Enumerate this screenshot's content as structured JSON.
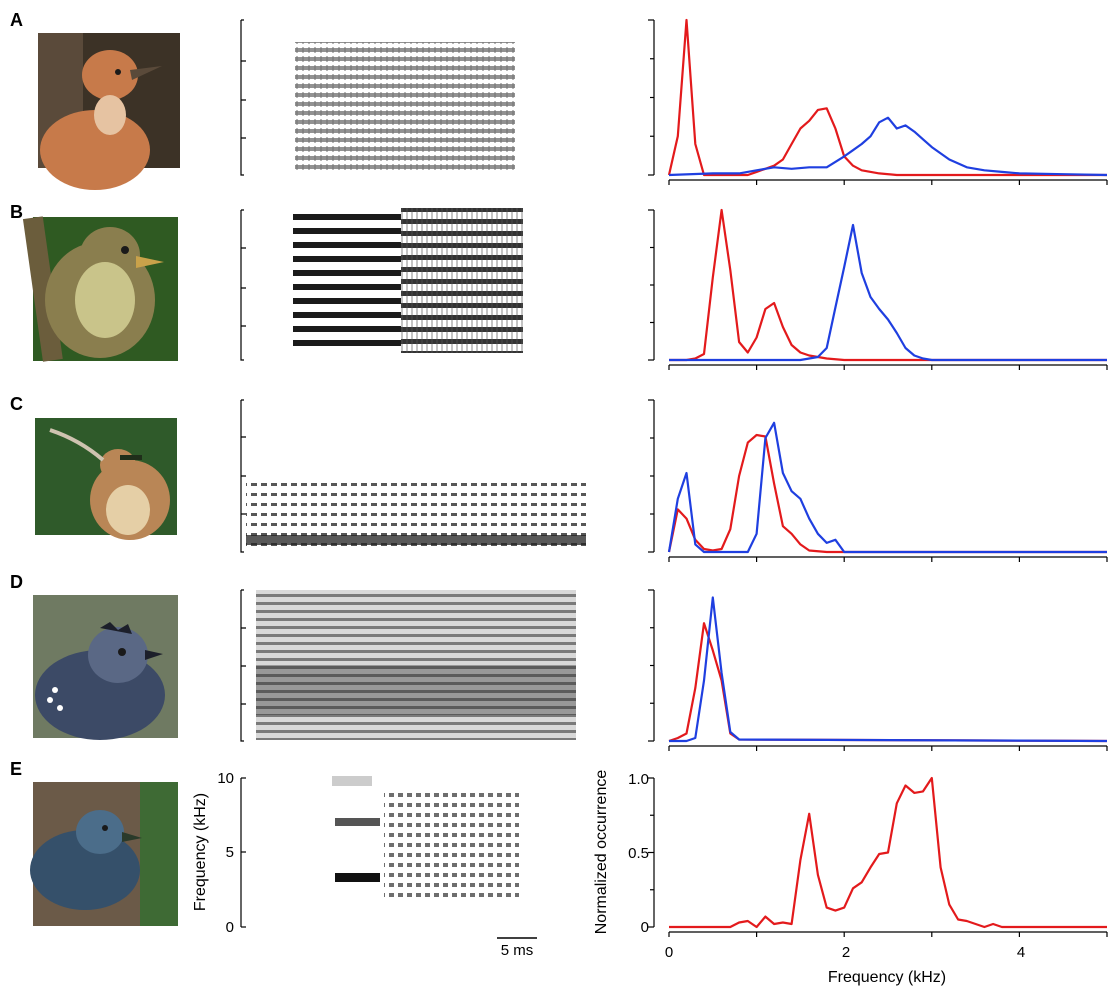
{
  "panels": [
    {
      "label": "A",
      "bird": "bird-photo-rufous-hornero",
      "photo_colors": [
        "#3c3226",
        "#c77a4a",
        "#e6c3a2",
        "#5a4a3a"
      ]
    },
    {
      "label": "B",
      "bird": "bird-photo-streaked-bird",
      "photo_colors": [
        "#2f5a22",
        "#8a7e4e",
        "#c9c48a",
        "#6b5d3c"
      ]
    },
    {
      "label": "C",
      "bird": "bird-photo-scythebill",
      "photo_colors": [
        "#2f5a2a",
        "#b98656",
        "#e5cfa6",
        "#1f2e1a"
      ]
    },
    {
      "label": "D",
      "bird": "bird-photo-crested-antshrike",
      "photo_colors": [
        "#6f7a62",
        "#3c4a66",
        "#5a6885",
        "#1c1f2a"
      ]
    },
    {
      "label": "E",
      "bird": "bird-photo-antbird",
      "photo_colors": [
        "#6b5a48",
        "#35506a",
        "#4b6d8a",
        "#2a3a2a"
      ]
    }
  ],
  "spectrogram_axis": {
    "ylabel": "Frequency (kHz)",
    "ticks": [
      "10",
      "5",
      "0"
    ]
  },
  "scale_bar": {
    "label": "5 ms"
  },
  "x_axis": {
    "label": "Frequency (kHz)",
    "ticks": [
      "0",
      "2",
      "4"
    ]
  },
  "y_axis": {
    "label": "Normalized occurrence",
    "ticks": [
      "1.0",
      "0.5",
      "0"
    ]
  },
  "colors": {
    "red": "#e31a1c",
    "blue": "#1f3fe0"
  },
  "chart_data": [
    {
      "panel": "A",
      "type": "line",
      "xlim": [
        0,
        5
      ],
      "ylim": [
        0,
        1
      ],
      "series": [
        {
          "color": "red",
          "x": [
            0,
            0.1,
            0.2,
            0.3,
            0.4,
            0.5,
            0.6,
            0.7,
            0.8,
            0.9,
            1.0,
            1.1,
            1.2,
            1.3,
            1.4,
            1.5,
            1.6,
            1.7,
            1.8,
            1.9,
            2.0,
            2.1,
            2.2,
            2.4,
            2.6,
            2.8,
            3.0,
            3.2,
            3.4,
            3.6,
            3.8,
            4.0,
            4.5,
            5.0
          ],
          "values": [
            0,
            0.25,
            1.0,
            0.2,
            0,
            0,
            0,
            0,
            0,
            0,
            0.02,
            0.04,
            0.06,
            0.1,
            0.2,
            0.3,
            0.35,
            0.42,
            0.43,
            0.3,
            0.12,
            0.06,
            0.03,
            0.01,
            0,
            0,
            0,
            0,
            0,
            0,
            0,
            0,
            0,
            0
          ]
        },
        {
          "color": "blue",
          "x": [
            0,
            0.5,
            0.8,
            1.0,
            1.2,
            1.4,
            1.6,
            1.8,
            2.0,
            2.1,
            2.2,
            2.3,
            2.4,
            2.5,
            2.6,
            2.7,
            2.8,
            2.9,
            3.0,
            3.2,
            3.4,
            3.6,
            3.8,
            4.0,
            4.5,
            5.0
          ],
          "values": [
            0,
            0.01,
            0.01,
            0.03,
            0.05,
            0.04,
            0.05,
            0.05,
            0.12,
            0.16,
            0.2,
            0.25,
            0.34,
            0.37,
            0.3,
            0.32,
            0.28,
            0.23,
            0.18,
            0.1,
            0.05,
            0.03,
            0.02,
            0.01,
            0.005,
            0
          ]
        }
      ]
    },
    {
      "panel": "B",
      "type": "line",
      "xlim": [
        0,
        5
      ],
      "ylim": [
        0,
        1
      ],
      "series": [
        {
          "color": "red",
          "x": [
            0,
            0.2,
            0.3,
            0.4,
            0.5,
            0.6,
            0.7,
            0.8,
            0.9,
            1.0,
            1.1,
            1.2,
            1.3,
            1.4,
            1.5,
            1.6,
            1.8,
            2.0,
            5.0
          ],
          "values": [
            0,
            0,
            0.01,
            0.04,
            0.55,
            1.0,
            0.6,
            0.12,
            0.05,
            0.15,
            0.34,
            0.38,
            0.22,
            0.1,
            0.05,
            0.03,
            0.01,
            0,
            0
          ]
        },
        {
          "color": "blue",
          "x": [
            0,
            1.5,
            1.6,
            1.7,
            1.8,
            1.9,
            2.0,
            2.1,
            2.2,
            2.3,
            2.4,
            2.5,
            2.6,
            2.7,
            2.8,
            2.9,
            3.0,
            5.0
          ],
          "values": [
            0,
            0,
            0.01,
            0.02,
            0.08,
            0.35,
            0.62,
            0.9,
            0.58,
            0.42,
            0.34,
            0.27,
            0.18,
            0.08,
            0.03,
            0.01,
            0,
            0
          ]
        }
      ]
    },
    {
      "panel": "C",
      "type": "line",
      "xlim": [
        0,
        5
      ],
      "ylim": [
        0,
        1
      ],
      "series": [
        {
          "color": "red",
          "x": [
            0,
            0.1,
            0.2,
            0.3,
            0.4,
            0.5,
            0.6,
            0.7,
            0.8,
            0.9,
            1.0,
            1.1,
            1.2,
            1.3,
            1.4,
            1.5,
            1.6,
            1.8,
            2.0,
            5.0
          ],
          "values": [
            0,
            0.28,
            0.22,
            0.08,
            0.02,
            0.01,
            0.02,
            0.15,
            0.5,
            0.72,
            0.77,
            0.76,
            0.45,
            0.17,
            0.12,
            0.05,
            0.01,
            0,
            0,
            0
          ]
        },
        {
          "color": "blue",
          "x": [
            0,
            0.1,
            0.2,
            0.3,
            0.4,
            0.5,
            0.6,
            0.7,
            0.8,
            0.9,
            1.0,
            1.1,
            1.2,
            1.3,
            1.4,
            1.5,
            1.6,
            1.7,
            1.8,
            1.9,
            2.0,
            5.0
          ],
          "values": [
            0,
            0.35,
            0.52,
            0.05,
            0,
            0,
            0,
            0,
            0,
            0,
            0.12,
            0.75,
            0.85,
            0.52,
            0.4,
            0.35,
            0.22,
            0.12,
            0.06,
            0.08,
            0,
            0
          ]
        }
      ]
    },
    {
      "panel": "D",
      "type": "line",
      "xlim": [
        0,
        5
      ],
      "ylim": [
        0,
        1
      ],
      "series": [
        {
          "color": "red",
          "x": [
            0,
            0.1,
            0.2,
            0.3,
            0.4,
            0.5,
            0.6,
            0.7,
            0.8,
            5.0
          ],
          "values": [
            0,
            0.02,
            0.05,
            0.35,
            0.78,
            0.6,
            0.4,
            0.05,
            0.01,
            0
          ]
        },
        {
          "color": "blue",
          "x": [
            0,
            0.2,
            0.3,
            0.4,
            0.5,
            0.6,
            0.7,
            0.8,
            5.0
          ],
          "values": [
            0,
            0,
            0.02,
            0.4,
            0.95,
            0.45,
            0.06,
            0.01,
            0
          ]
        }
      ]
    },
    {
      "panel": "E",
      "type": "line",
      "xlim": [
        0,
        5
      ],
      "ylim": [
        0,
        1
      ],
      "series": [
        {
          "color": "red",
          "x": [
            0,
            0.5,
            0.7,
            0.8,
            0.9,
            1.0,
            1.1,
            1.2,
            1.3,
            1.4,
            1.5,
            1.6,
            1.7,
            1.8,
            1.9,
            2.0,
            2.1,
            2.2,
            2.3,
            2.4,
            2.5,
            2.6,
            2.7,
            2.8,
            2.9,
            3.0,
            3.1,
            3.2,
            3.3,
            3.4,
            3.5,
            3.6,
            3.7,
            3.8,
            4.0,
            5.0
          ],
          "values": [
            0,
            0,
            0,
            0.03,
            0.04,
            0,
            0.07,
            0.02,
            0.03,
            0.02,
            0.45,
            0.76,
            0.35,
            0.13,
            0.11,
            0.13,
            0.26,
            0.3,
            0.4,
            0.49,
            0.5,
            0.83,
            0.95,
            0.9,
            0.91,
            1.0,
            0.4,
            0.15,
            0.05,
            0.04,
            0.02,
            0,
            0.02,
            0,
            0,
            0
          ]
        }
      ]
    }
  ]
}
